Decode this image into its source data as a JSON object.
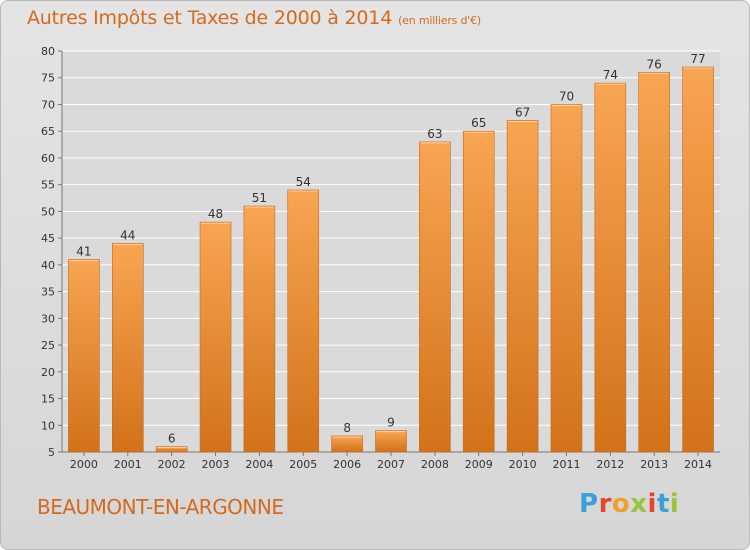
{
  "title": "Autres Impôts et Taxes de 2000 à 2014",
  "subtitle": "(en milliers d'€)",
  "place": "BEAUMONT-EN-ARGONNE",
  "logo": {
    "text": "Proxiti"
  },
  "colors": {
    "bar": "#e58a2e",
    "bar_light": "#f7a34f",
    "bar_dark": "#c56a12",
    "title": "#d46a1c",
    "grid": "#ffffff"
  },
  "chart_data": {
    "type": "bar",
    "categories": [
      "2000",
      "2001",
      "2002",
      "2003",
      "2004",
      "2005",
      "2006",
      "2007",
      "2008",
      "2009",
      "2010",
      "2011",
      "2012",
      "2013",
      "2014"
    ],
    "values": [
      41,
      44,
      6,
      48,
      51,
      54,
      8,
      9,
      63,
      65,
      67,
      70,
      74,
      76,
      77
    ],
    "ylim": [
      5,
      80
    ],
    "yticks": [
      5,
      10,
      15,
      20,
      25,
      30,
      35,
      40,
      45,
      50,
      55,
      60,
      65,
      70,
      75,
      80
    ],
    "grid": true,
    "legend": "none"
  }
}
